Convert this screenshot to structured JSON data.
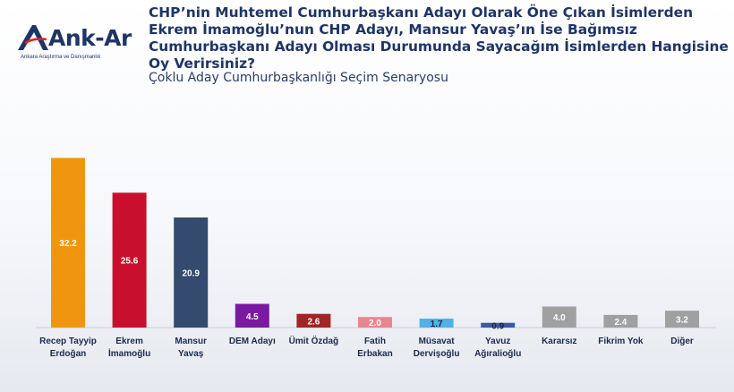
{
  "brand": {
    "name": "Ank-Ar",
    "tagline": "Ankara Araştırma ve Danışmanlık",
    "color": "#1f3566"
  },
  "header": {
    "title": "CHP’nin Muhtemel Cumhurbaşkanı Adayı Olarak Öne Çıkan İsimlerden Ekrem İmamoğlu’nun CHP Adayı, Mansur Yavaş’ın İse Bağımsız Cumhurbaşkanı Adayı Olması Durumunda Sayacağım İsimlerden Hangisine Oy Verirsiniz?",
    "subtitle": "Çoklu Aday Cumhurbaşkanlığı Seçim Senaryosu"
  },
  "chart_data": {
    "type": "bar",
    "title": "CHP’nin Muhtemel Cumhurbaşkanı Adayı Olarak Öne Çıkan İsimlerden Ekrem İmamoğlu’nun CHP Adayı, Mansur Yavaş’ın İse Bağımsız Cumhurbaşkanı Adayı Olması Durumunda Sayacağım İsimlerden Hangisine Oy Verirsiniz?",
    "subtitle": "Çoklu Aday Cumhurbaşkanlığı Seçim Senaryosu",
    "xlabel": "",
    "ylabel": "",
    "ylim": [
      0,
      35
    ],
    "grid": false,
    "categories": [
      [
        "Recep Tayyip",
        "Erdoğan"
      ],
      [
        "Ekrem",
        "İmamoğlu"
      ],
      [
        "Mansur",
        "Yavaş"
      ],
      [
        "DEM Adayı"
      ],
      [
        "Ümit Özdağ"
      ],
      [
        "Fatih",
        "Erbakan"
      ],
      [
        "Müsavat",
        "Dervişoğlu"
      ],
      [
        "Yavuz",
        "Ağıralioğlu"
      ],
      [
        "Kararsız"
      ],
      [
        "Fikrim Yok"
      ],
      [
        "Diğer"
      ]
    ],
    "values": [
      32.2,
      25.6,
      20.9,
      4.5,
      2.6,
      2.0,
      1.7,
      0.9,
      4.0,
      2.4,
      3.2
    ],
    "value_labels": [
      "32.2",
      "25.6",
      "20.9",
      "4.5",
      "2.6",
      "2.0",
      "1.7",
      "0.9",
      "4.0",
      "2.4",
      "3.2"
    ],
    "colors": [
      "#f0960e",
      "#c8102e",
      "#344a6e",
      "#7a1aa0",
      "#a32424",
      "#e8868e",
      "#4fb3e6",
      "#3a5aa0",
      "#a0a0a0",
      "#a0a0a0",
      "#a0a0a0"
    ],
    "value_label_colors": [
      "#ffffff",
      "#ffffff",
      "#ffffff",
      "#ffffff",
      "#ffffff",
      "#ffffff",
      "#1a2a4a",
      "#1a2a4a",
      "#ffffff",
      "#ffffff",
      "#ffffff"
    ]
  }
}
